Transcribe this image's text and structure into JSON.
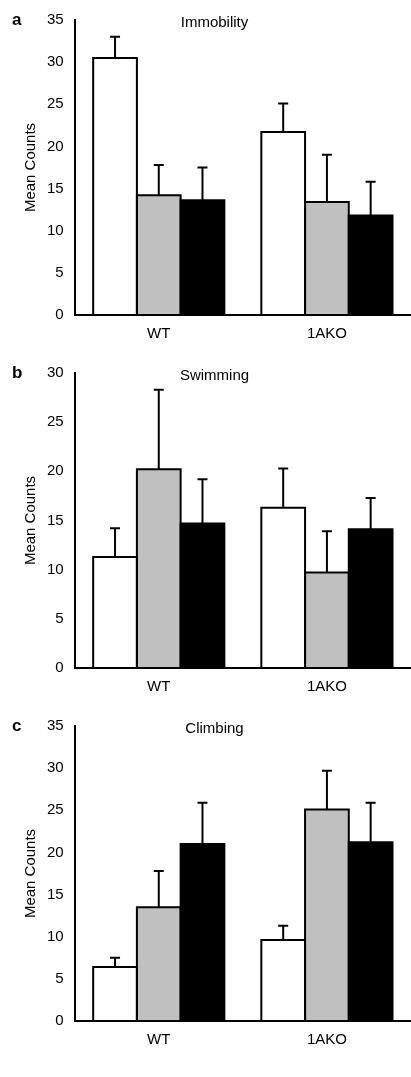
{
  "chart_data": [
    {
      "type": "bar",
      "title": "Immobility",
      "ylabel": "Mean Counts",
      "annotations": [
        "a"
      ],
      "categories": [
        "WT",
        "1AKO"
      ],
      "ylim": [
        0,
        35
      ],
      "yticks": [
        0,
        5,
        10,
        15,
        20,
        25,
        30,
        35
      ],
      "grid": false,
      "legend": false,
      "series": [
        {
          "color": "#ffffff",
          "values": [
            30.5,
            21.7
          ],
          "errors": [
            [
              30.5,
              33
            ],
            [
              21.7,
              25.1
            ]
          ]
        },
        {
          "color": "#c0c0c0",
          "values": [
            14.2,
            13.4
          ],
          "errors": [
            [
              14.2,
              17.8
            ],
            [
              13.4,
              19
            ]
          ]
        },
        {
          "color": "#000000",
          "values": [
            13.6,
            11.8
          ],
          "errors": [
            [
              13.6,
              17.5
            ],
            [
              11.8,
              15.8
            ]
          ]
        }
      ]
    },
    {
      "type": "bar",
      "title": "Swimming",
      "ylabel": "Mean Counts",
      "annotations": [
        "b"
      ],
      "categories": [
        "WT",
        "1AKO"
      ],
      "ylim": [
        0,
        30
      ],
      "yticks": [
        0,
        5,
        10,
        15,
        20,
        25,
        30
      ],
      "grid": false,
      "legend": false,
      "series": [
        {
          "color": "#ffffff",
          "values": [
            11.3,
            16.3
          ],
          "errors": [
            [
              11.3,
              14.2
            ],
            [
              16.3,
              20.3
            ]
          ]
        },
        {
          "color": "#c0c0c0",
          "values": [
            20.2,
            9.7
          ],
          "errors": [
            [
              20.2,
              28.3
            ],
            [
              9.7,
              13.9
            ]
          ]
        },
        {
          "color": "#000000",
          "values": [
            14.7,
            14.1
          ],
          "errors": [
            [
              14.7,
              19.2
            ],
            [
              14.1,
              17.3
            ]
          ]
        }
      ]
    },
    {
      "type": "bar",
      "title": "Climbing",
      "ylabel": "Mean Counts",
      "annotations": [
        "c"
      ],
      "categories": [
        "WT",
        "1AKO"
      ],
      "ylim": [
        0,
        35
      ],
      "yticks": [
        0,
        5,
        10,
        15,
        20,
        25,
        30,
        35
      ],
      "grid": false,
      "legend": false,
      "series": [
        {
          "color": "#ffffff",
          "values": [
            6.4,
            9.6
          ],
          "errors": [
            [
              6.4,
              7.5
            ],
            [
              9.6,
              11.3
            ]
          ]
        },
        {
          "color": "#c0c0c0",
          "values": [
            13.5,
            25.1
          ],
          "errors": [
            [
              13.5,
              17.8
            ],
            [
              25.1,
              29.7
            ]
          ]
        },
        {
          "color": "#000000",
          "values": [
            21,
            21.2
          ],
          "errors": [
            [
              21,
              25.9
            ],
            [
              21.2,
              25.9
            ]
          ]
        }
      ]
    }
  ]
}
